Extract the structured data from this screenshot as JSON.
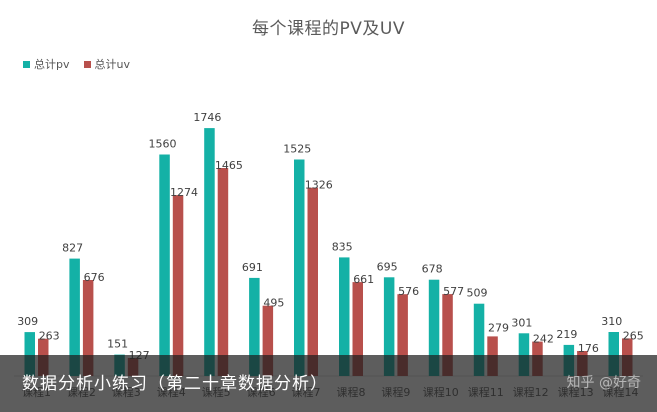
{
  "chart_data": {
    "type": "bar",
    "title": "每个课程的PV及UV",
    "categories": [
      "课程1",
      "课程2",
      "课程3",
      "课程4",
      "课程5",
      "课程6",
      "课程7",
      "课程8",
      "课程9",
      "课程10",
      "课程11",
      "课程12",
      "课程13",
      "课程14"
    ],
    "series": [
      {
        "name": "总计pv",
        "color": "#14b1a6",
        "values": [
          309,
          827,
          151,
          1560,
          1746,
          691,
          1525,
          835,
          695,
          678,
          509,
          301,
          219,
          310
        ]
      },
      {
        "name": "总计uv",
        "color": "#b8504c",
        "values": [
          263,
          676,
          127,
          1274,
          1465,
          495,
          1326,
          661,
          576,
          577,
          279,
          242,
          176,
          265
        ]
      }
    ],
    "ylim": [
      0,
      2000
    ],
    "legend_position": "top-left",
    "grid": false
  },
  "caption": {
    "text": "数据分析小练习（第二十章数据分析）",
    "watermark": "知乎 @好奇"
  }
}
